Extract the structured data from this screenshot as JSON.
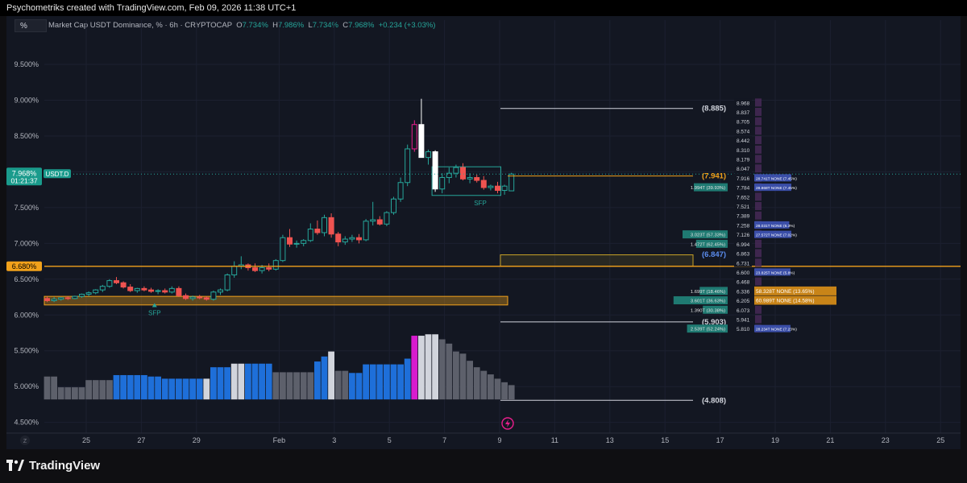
{
  "header": {
    "credit": "Psychometriks created with TradingView.com, Feb 09, 2026 11:38 UTC+1"
  },
  "toolbar": {
    "unit_button": "%"
  },
  "legend": {
    "title": "Market Cap USDT Dominance, % · 6h · CRYPTOCAP",
    "o_label": "O",
    "o": "7.734%",
    "h_label": "H",
    "h": "7.986%",
    "l_label": "L",
    "l": "7.734%",
    "c_label": "C",
    "c": "7.968%",
    "change": "+0.234 (+3.03%)"
  },
  "price_tag": {
    "value": "7.968%",
    "countdown": "01:21:37",
    "symbol": "USDT.D"
  },
  "level_tag": {
    "value": "6.680%"
  },
  "footer": {
    "brand": "TradingView",
    "scale_button": "Z"
  },
  "colors": {
    "up": "#26a69a",
    "down": "#ef5350",
    "accent_orange": "#f2a21b",
    "volume_blue": "#1e6fd9",
    "volume_grey": "#5d606b",
    "volume_white": "#d1d4dc",
    "volume_magenta": "#d81bce"
  },
  "chart_data": {
    "type": "candlestick",
    "ylabel": "%",
    "ylim": [
      4.35,
      9.95
    ],
    "y_ticks": [
      "9.500%",
      "9.000%",
      "8.500%",
      "8.000%",
      "7.500%",
      "7.000%",
      "6.500%",
      "6.000%",
      "5.500%",
      "5.000%",
      "4.500%"
    ],
    "x_ticks": [
      {
        "d": 25,
        "label": "25"
      },
      {
        "d": 27,
        "label": "27"
      },
      {
        "d": 29,
        "label": "29"
      },
      {
        "d": 32,
        "label": "Feb"
      },
      {
        "d": 34,
        "label": "3"
      },
      {
        "d": 36,
        "label": "5"
      },
      {
        "d": 38,
        "label": "7"
      },
      {
        "d": 40,
        "label": "9"
      },
      {
        "d": 42,
        "label": "11"
      },
      {
        "d": 44,
        "label": "13"
      },
      {
        "d": 46,
        "label": "15"
      },
      {
        "d": 48,
        "label": "17"
      },
      {
        "d": 50,
        "label": "19"
      },
      {
        "d": 52,
        "label": "21"
      },
      {
        "d": 54,
        "label": "23"
      },
      {
        "d": 56,
        "label": "25"
      }
    ],
    "candles": [
      [
        6.23,
        6.26,
        6.18,
        6.2
      ],
      [
        6.2,
        6.25,
        6.18,
        6.22
      ],
      [
        6.22,
        6.25,
        6.2,
        6.24
      ],
      [
        6.24,
        6.26,
        6.21,
        6.23
      ],
      [
        6.23,
        6.27,
        6.22,
        6.26
      ],
      [
        6.26,
        6.3,
        6.24,
        6.29
      ],
      [
        6.29,
        6.33,
        6.26,
        6.31
      ],
      [
        6.31,
        6.36,
        6.29,
        6.35
      ],
      [
        6.35,
        6.42,
        6.32,
        6.4
      ],
      [
        6.4,
        6.5,
        6.38,
        6.48
      ],
      [
        6.48,
        6.53,
        6.43,
        6.45
      ],
      [
        6.45,
        6.47,
        6.37,
        6.39
      ],
      [
        6.39,
        6.43,
        6.32,
        6.34
      ],
      [
        6.34,
        6.38,
        6.31,
        6.37
      ],
      [
        6.37,
        6.4,
        6.33,
        6.35
      ],
      [
        6.35,
        6.38,
        6.31,
        6.33
      ],
      [
        6.33,
        6.36,
        6.29,
        6.34
      ],
      [
        6.34,
        6.37,
        6.3,
        6.32
      ],
      [
        6.32,
        6.4,
        6.3,
        6.37
      ],
      [
        6.37,
        6.4,
        6.25,
        6.27
      ],
      [
        6.27,
        6.3,
        6.21,
        6.23
      ],
      [
        6.23,
        6.27,
        6.2,
        6.25
      ],
      [
        6.25,
        6.28,
        6.22,
        6.24
      ],
      [
        6.24,
        6.26,
        6.2,
        6.22
      ],
      [
        6.22,
        6.34,
        6.2,
        6.32
      ],
      [
        6.32,
        6.37,
        6.28,
        6.35
      ],
      [
        6.35,
        6.58,
        6.33,
        6.56
      ],
      [
        6.56,
        6.75,
        6.52,
        6.68
      ],
      [
        6.68,
        6.82,
        6.64,
        6.7
      ],
      [
        6.7,
        6.72,
        6.62,
        6.66
      ],
      [
        6.66,
        6.72,
        6.6,
        6.62
      ],
      [
        6.62,
        6.7,
        6.58,
        6.66
      ],
      [
        6.66,
        6.72,
        6.61,
        6.64
      ],
      [
        6.64,
        6.78,
        6.62,
        6.76
      ],
      [
        6.76,
        7.12,
        6.74,
        7.08
      ],
      [
        7.08,
        7.2,
        6.95,
        6.99
      ],
      [
        6.99,
        7.04,
        6.94,
        7.0
      ],
      [
        7.0,
        7.06,
        6.96,
        7.04
      ],
      [
        7.04,
        7.28,
        7.02,
        7.2
      ],
      [
        7.2,
        7.32,
        7.12,
        7.15
      ],
      [
        7.15,
        7.4,
        7.1,
        7.36
      ],
      [
        7.36,
        7.42,
        7.08,
        7.13
      ],
      [
        7.13,
        7.16,
        6.96,
        7.02
      ],
      [
        7.02,
        7.1,
        6.98,
        7.06
      ],
      [
        7.06,
        7.12,
        7.02,
        7.08
      ],
      [
        7.08,
        7.13,
        7.0,
        7.05
      ],
      [
        7.05,
        7.34,
        7.03,
        7.31
      ],
      [
        7.31,
        7.58,
        7.25,
        7.33
      ],
      [
        7.33,
        7.38,
        7.25,
        7.27
      ],
      [
        7.27,
        7.45,
        7.24,
        7.43
      ],
      [
        7.43,
        7.65,
        7.4,
        7.62
      ],
      [
        7.62,
        7.92,
        7.58,
        7.85
      ],
      [
        7.85,
        8.38,
        7.8,
        8.32
      ],
      [
        8.32,
        8.72,
        8.28,
        8.66
      ],
      [
        8.66,
        9.02,
        8.2,
        8.2
      ],
      [
        8.2,
        8.31,
        8.1,
        8.28
      ],
      [
        8.28,
        8.3,
        7.72,
        7.76
      ],
      [
        7.76,
        7.98,
        7.7,
        7.92
      ],
      [
        7.92,
        8.06,
        7.84,
        7.98
      ],
      [
        7.98,
        8.1,
        7.92,
        8.06
      ],
      [
        8.06,
        8.12,
        7.88,
        7.9
      ],
      [
        7.9,
        7.98,
        7.84,
        7.92
      ],
      [
        7.92,
        7.96,
        7.85,
        7.88
      ],
      [
        7.88,
        7.94,
        7.75,
        7.78
      ],
      [
        7.78,
        7.82,
        7.74,
        7.8
      ],
      [
        7.8,
        7.86,
        7.7,
        7.74
      ],
      [
        7.74,
        7.82,
        7.68,
        7.8
      ],
      [
        7.734,
        7.986,
        7.734,
        7.968
      ]
    ],
    "candle_colors": {
      "53": "#e91e8c"
    },
    "volume_oscillator": {
      "base": 4.82,
      "values": [
        5.14,
        5.14,
        4.99,
        4.99,
        4.99,
        4.99,
        5.09,
        5.09,
        5.09,
        5.09,
        5.16,
        5.16,
        5.16,
        5.16,
        5.16,
        5.14,
        5.14,
        5.14,
        5.11,
        5.11,
        5.11,
        5.11,
        5.11,
        5.11,
        5.11,
        5.11,
        5.11,
        5.11,
        5.11,
        5.11,
        5.11,
        5.11,
        5.11,
        5.11,
        5.11,
        5.11,
        5.11,
        5.11,
        5.11,
        5.11,
        5.11,
        5.11,
        5.11,
        5.11,
        5.11,
        5.11,
        5.11,
        5.11,
        5.11,
        5.11,
        5.11,
        5.11,
        5.11,
        5.11,
        5.11,
        5.11,
        5.11,
        5.11,
        5.11,
        5.11,
        5.11,
        5.11,
        5.11,
        5.11,
        5.11,
        5.11,
        5.11,
        5.11
      ],
      "profile": [
        5.14,
        5.14,
        4.99,
        4.99,
        4.99,
        4.99,
        5.09,
        5.09,
        5.09,
        5.09,
        5.16,
        5.16,
        5.16,
        5.16,
        5.16,
        5.14,
        5.14,
        5.11,
        5.11,
        5.11,
        5.11,
        5.11,
        5.11,
        5.11,
        5.27,
        5.27,
        5.27,
        5.32,
        5.32,
        5.32,
        5.32,
        5.32,
        5.32,
        5.2,
        5.2,
        5.2,
        5.2,
        5.2,
        5.2,
        5.35,
        5.42,
        5.49,
        5.22,
        5.22,
        5.19,
        5.19,
        5.31,
        5.31,
        5.31,
        5.31,
        5.31,
        5.31,
        5.39,
        5.71,
        5.71,
        5.73,
        5.73,
        5.66,
        5.6,
        5.49,
        5.46,
        5.36,
        5.27,
        5.22,
        5.17,
        5.11,
        5.06,
        5.02
      ],
      "colors": [
        "g",
        "g",
        "g",
        "g",
        "g",
        "g",
        "g",
        "g",
        "g",
        "g",
        "b",
        "b",
        "b",
        "b",
        "b",
        "b",
        "b",
        "b",
        "b",
        "b",
        "b",
        "b",
        "b",
        "w",
        "b",
        "b",
        "b",
        "w",
        "w",
        "b",
        "b",
        "b",
        "b",
        "g",
        "g",
        "g",
        "g",
        "g",
        "g",
        "b",
        "b",
        "w",
        "g",
        "g",
        "b",
        "b",
        "b",
        "b",
        "b",
        "b",
        "b",
        "b",
        "b",
        "m",
        "w",
        "w",
        "w",
        "g",
        "g",
        "g",
        "g",
        "g",
        "g",
        "g",
        "g",
        "g",
        "g",
        "g"
      ]
    },
    "horizontal_levels": [
      {
        "value": 8.885,
        "label": "(8.885)",
        "color": "#d1d4dc"
      },
      {
        "value": 7.941,
        "label": "(7.941)",
        "color": "#f2a21b"
      },
      {
        "value": 6.847,
        "label": "(6.847)",
        "color": "#5b8def"
      },
      {
        "value": 5.903,
        "label": "(5.903)",
        "color": "#d1d4dc"
      },
      {
        "value": 4.808,
        "label": "(4.808)",
        "color": "#d1d4dc"
      }
    ],
    "support_line": {
      "value": 6.68,
      "color": "#f2a21b"
    },
    "zones": [
      {
        "name": "support-zone",
        "y_top": 6.26,
        "y_bottom": 6.14,
        "color": "#f2a21b"
      },
      {
        "name": "fvg-zone",
        "y_top": 6.84,
        "y_bottom": 6.68,
        "color": "#c9a227"
      },
      {
        "name": "range-box",
        "y_top": 8.07,
        "y_bottom": 7.67,
        "color": "#26a69a"
      }
    ],
    "annotations": [
      {
        "label": "SFP",
        "candle": 15.5,
        "value": 6.11
      },
      {
        "label": "SFP",
        "candle": 62.5,
        "value": 7.53
      }
    ],
    "profile_levels": [
      "8.968",
      "8.837",
      "8.705",
      "8.574",
      "8.442",
      "8.310",
      "8.179",
      "8.047",
      "7.916",
      "7.784",
      "7.652",
      "7.521",
      "7.389",
      "7.258",
      "7.126",
      "6.994",
      "6.863",
      "6.731",
      "6.600",
      "6.468",
      "6.336",
      "6.205",
      "6.073",
      "5.941",
      "5.810"
    ],
    "profile_left": [
      {
        "value": 7.784,
        "label": "1.994T (39.93%)",
        "len": 0.75
      },
      {
        "value": 7.126,
        "label": "3.023T (57.33%)",
        "len": 1.0
      },
      {
        "value": 6.994,
        "label": "1.472T (62.45%)",
        "len": 0.7
      },
      {
        "value": 6.336,
        "label": "1.699T (18.46%)",
        "len": 0.62
      },
      {
        "value": 6.205,
        "label": "3.601T (36.63%)",
        "len": 1.2
      },
      {
        "value": 6.073,
        "label": "1.390T (30.38%)",
        "len": 0.55
      },
      {
        "value": 5.81,
        "label": "2.539T (52.24%)",
        "len": 0.9
      }
    ],
    "profile_right": [
      {
        "value": 7.916,
        "label": "28.741T NONE (7.45%)",
        "len": 0.5
      },
      {
        "value": 7.784,
        "label": "28.868T NONE (7.45%)",
        "len": 0.5
      },
      {
        "value": 7.258,
        "label": "28.031T NONE (6.3%)",
        "len": 0.45
      },
      {
        "value": 7.126,
        "label": "27.572T NONE (7.02%)",
        "len": 0.5
      },
      {
        "value": 6.6,
        "label": "23.825T NONE (5.8%)",
        "len": 0.48
      },
      {
        "value": 6.336,
        "label": "58.328T NONE (13.65%)",
        "len": 1.0
      },
      {
        "value": 6.205,
        "label": "60.989T NONE (14.58%)",
        "len": 1.0
      },
      {
        "value": 5.81,
        "label": "28.234T NONE (7.23%)",
        "len": 0.48
      }
    ]
  }
}
